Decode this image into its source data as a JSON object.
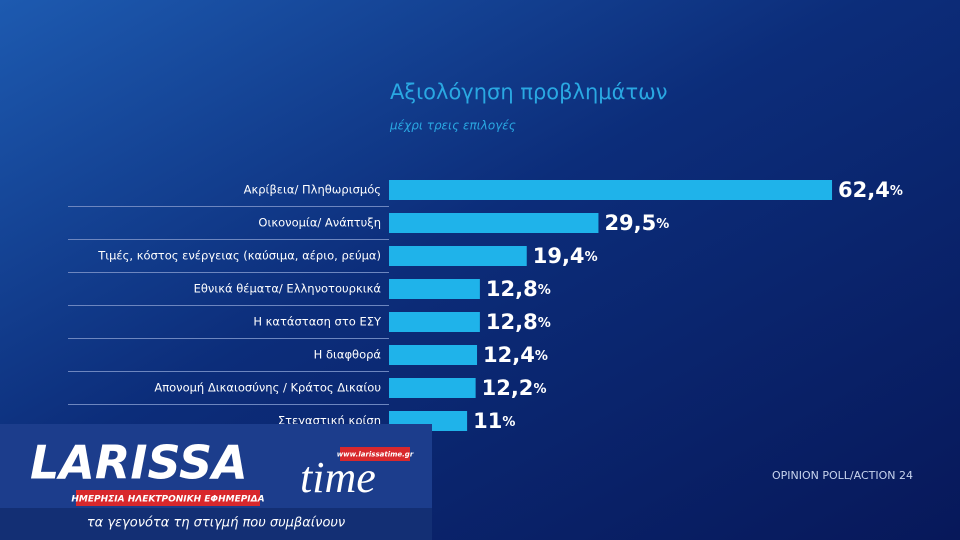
{
  "chart_data": {
    "type": "bar",
    "orientation": "horizontal",
    "title": "Αξιολόγηση προβλημάτων",
    "subtitle": "μέχρι τρεις επιλογές",
    "categories": [
      "Ακρίβεια/ Πληθωρισμός",
      "Οικονομία/ Ανάπτυξη",
      "Τιμές, κόστος ενέργειας (καύσιμα, αέριο, ρεύμα)",
      "Εθνικά θέματα/ Ελληνοτουρκικά",
      "Η κατάσταση στο ΕΣΥ",
      "Η διαφθορά",
      "Απονομή Δικαιοσύνης / Κράτος Δικαίου",
      "Στεγαστική κρίση"
    ],
    "values": [
      62.4,
      29.5,
      19.4,
      12.8,
      12.8,
      12.4,
      12.2,
      11
    ],
    "value_labels": [
      "62,4%",
      "29,5%",
      "19,4%",
      "12,8%",
      "12,8%",
      "12,4%",
      "12,2%",
      "11%"
    ],
    "color": "#1fb3ea",
    "source": "OPINION POLL/ACTION 24"
  },
  "logo": {
    "name_left": "LARISSA",
    "name_right": "time",
    "url": "www.larissatime.gr",
    "banner": "ΗΜΕΡΗΣΙΑ ΗΛΕΚΤΡΟΝΙΚΗ ΕΦΗΜΕΡΙΔΑ",
    "tagline": "τα γεγονότα τη στιγμή που συμβαίνουν"
  }
}
